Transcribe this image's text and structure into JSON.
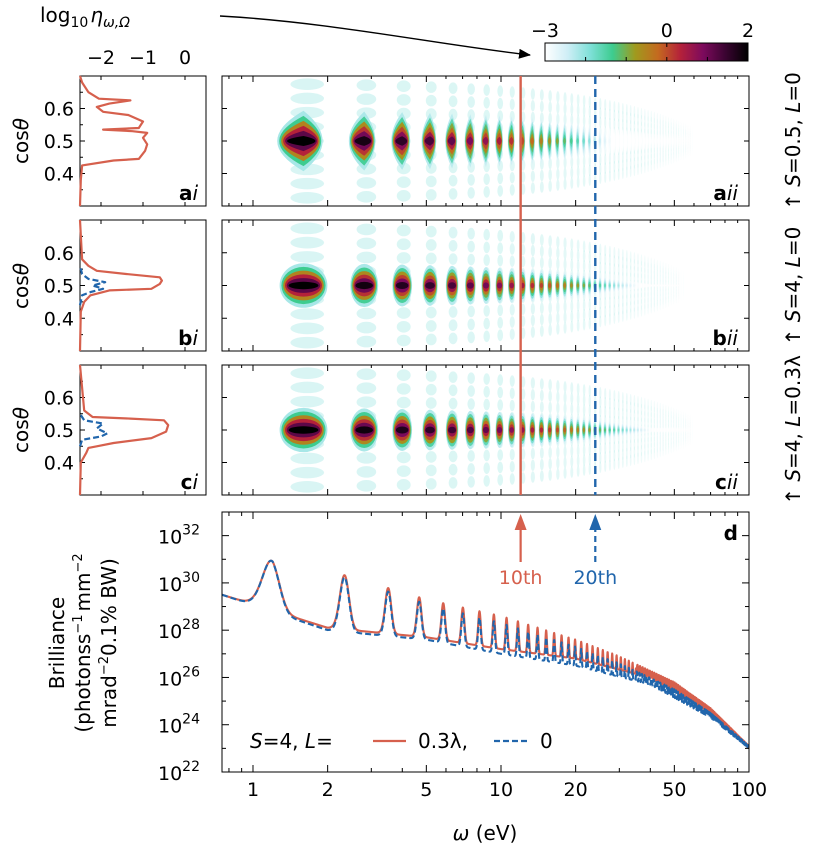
{
  "chart_data": [
    {
      "type": "heatmap",
      "panel": "colorbar",
      "title": "log10 η ω,Ω",
      "range": [
        -3,
        2
      ],
      "ticks": [
        "−3",
        "0",
        "2"
      ],
      "colors": [
        "#ffffff",
        "#cfeef6",
        "#7fe0d8",
        "#3dcc8f",
        "#a09a1e",
        "#c46a1f",
        "#b4213a",
        "#7d0a5d",
        "#3a0431",
        "#000000"
      ]
    },
    {
      "type": "line",
      "panel": "ai",
      "ylabel": "cosθ",
      "xticks": [
        "−2",
        "−1",
        "0"
      ],
      "yticks": [
        "0.4",
        "0.5",
        "0.6"
      ],
      "xlim": [
        -2.5,
        0.5
      ],
      "ylim": [
        0.3,
        0.7
      ],
      "panel_label": "a",
      "panel_label_italic": "i",
      "series": [
        {
          "color": "#d6604d",
          "dash": "solid",
          "x": [
            -2.5,
            -2.48,
            -2.45,
            -1.7,
            -1.1,
            -0.95,
            -0.9,
            -1.0,
            -0.9,
            -1.25,
            -1.95,
            -1.1,
            -1.0,
            -1.35,
            -1.95,
            -2.1,
            -1.8,
            -1.3,
            -2.05,
            -2.3,
            -2.45,
            -2.5
          ],
          "y": [
            0.3,
            0.38,
            0.425,
            0.44,
            0.445,
            0.47,
            0.49,
            0.51,
            0.525,
            0.53,
            0.535,
            0.54,
            0.56,
            0.58,
            0.59,
            0.605,
            0.615,
            0.625,
            0.63,
            0.65,
            0.68,
            0.7
          ]
        }
      ]
    },
    {
      "type": "line",
      "panel": "bi",
      "ylabel": "cosθ",
      "yticks": [
        "0.4",
        "0.5",
        "0.6"
      ],
      "xlim": [
        -2.5,
        0.5
      ],
      "ylim": [
        0.3,
        0.7
      ],
      "panel_label": "b",
      "panel_label_italic": "i",
      "series": [
        {
          "color": "#d6604d",
          "dash": "solid",
          "x": [
            -2.5,
            -2.48,
            -2.4,
            -2.25,
            -1.8,
            -0.8,
            -0.6,
            -0.55,
            -0.6,
            -1.4,
            -2.1,
            -2.3,
            -2.45,
            -2.5
          ],
          "y": [
            0.3,
            0.42,
            0.45,
            0.47,
            0.485,
            0.49,
            0.505,
            0.515,
            0.525,
            0.535,
            0.545,
            0.56,
            0.58,
            0.7
          ]
        },
        {
          "color": "#2166ac",
          "dash": "dashed",
          "x": [
            -2.5,
            -2.45,
            -2.25,
            -1.95,
            -2.2,
            -1.9,
            -2.3,
            -2.45,
            -2.5
          ],
          "y": [
            0.44,
            0.47,
            0.48,
            0.49,
            0.5,
            0.51,
            0.52,
            0.535,
            0.56
          ]
        }
      ]
    },
    {
      "type": "line",
      "panel": "ci",
      "ylabel": "cosθ",
      "yticks": [
        "0.4",
        "0.5",
        "0.6"
      ],
      "xlim": [
        -2.5,
        0.5
      ],
      "ylim": [
        0.3,
        0.7
      ],
      "panel_label": "c",
      "panel_label_italic": "i",
      "series": [
        {
          "color": "#d6604d",
          "dash": "solid",
          "x": [
            -2.5,
            -2.48,
            -2.35,
            -2.3,
            -2.1,
            -1.7,
            -0.8,
            -0.45,
            -0.4,
            -0.5,
            -1.3,
            -2.2,
            -2.4,
            -2.5
          ],
          "y": [
            0.3,
            0.4,
            0.43,
            0.445,
            0.45,
            0.46,
            0.475,
            0.495,
            0.515,
            0.53,
            0.535,
            0.54,
            0.56,
            0.7
          ]
        },
        {
          "color": "#2166ac",
          "dash": "dashed",
          "x": [
            -2.5,
            -2.45,
            -2.0,
            -1.85,
            -2.1,
            -1.95,
            -2.4,
            -2.5
          ],
          "y": [
            0.45,
            0.47,
            0.48,
            0.49,
            0.505,
            0.52,
            0.53,
            0.55
          ]
        }
      ]
    },
    {
      "type": "heatmap",
      "panel": "aii",
      "xscale": "log",
      "xlim": [
        0.75,
        100
      ],
      "ylim": [
        0.3,
        0.7
      ],
      "panel_label": "a",
      "panel_label_italic": "ii",
      "side_label": "↑  S=0.5, L=0",
      "side_parts": [
        "↑",
        "S",
        "=0.5,",
        "L",
        "=0"
      ],
      "harmonic_spacing_eV": 1.17,
      "blob_center_y": 0.5,
      "blob_halfwidth_y": 0.095,
      "width_shrink_per_harmonic": 0.022,
      "fade_out_eV": 60,
      "peak_level": 2.0,
      "level_decay_per_harmonic": 0.22,
      "crescent_shape": true
    },
    {
      "type": "heatmap",
      "panel": "bii",
      "xscale": "log",
      "xlim": [
        0.75,
        100
      ],
      "ylim": [
        0.3,
        0.7
      ],
      "panel_label": "b",
      "panel_label_italic": "ii",
      "side_label": "↑  S=4, L=0",
      "side_parts": [
        "↑",
        "S",
        "=4,",
        "L",
        "=0"
      ],
      "harmonic_spacing_eV": 1.17,
      "blob_center_y": 0.5,
      "blob_halfwidth_y": 0.07,
      "width_shrink_per_harmonic": 0.028,
      "fade_out_eV": 55,
      "peak_level": 2.0,
      "level_decay_per_harmonic": 0.17,
      "crescent_shape": false
    },
    {
      "type": "heatmap",
      "panel": "cii",
      "xscale": "log",
      "xlim": [
        0.75,
        100
      ],
      "ylim": [
        0.3,
        0.7
      ],
      "panel_label": "c",
      "panel_label_italic": "ii",
      "side_label": "↑  S=4, L=0.3λ",
      "side_parts": [
        "↑",
        "S",
        "=4,",
        "L",
        "=0.3λ"
      ],
      "harmonic_spacing_eV": 1.17,
      "blob_center_y": 0.5,
      "blob_halfwidth_y": 0.07,
      "width_shrink_per_harmonic": 0.026,
      "fade_out_eV": 60,
      "peak_level": 2.0,
      "level_decay_per_harmonic": 0.15,
      "crescent_shape": false
    },
    {
      "type": "line",
      "panel": "d",
      "xscale": "log",
      "yscale": "log",
      "xlim": [
        0.75,
        100
      ],
      "ylim": [
        1e+22,
        1e+33
      ],
      "xlabel": "ω (eV)",
      "ylabel_lines": [
        "Brilliance",
        "(photons s−1 mm−2",
        "mrad−2 0.1% BW)"
      ],
      "ylabel_parts": [
        "Brilliance",
        "(photons",
        "s",
        "−1",
        "mm",
        "−2",
        "mrad",
        "−2",
        "0.1% BW)"
      ],
      "xticks": [
        1,
        2,
        5,
        10,
        20,
        50,
        100
      ],
      "xtick_labels": [
        "1",
        "2",
        "5",
        "10",
        "20",
        "50",
        "100"
      ],
      "yticks": [
        22,
        24,
        26,
        28,
        30,
        32
      ],
      "ytick_labels": [
        "10",
        "10",
        "10",
        "10",
        "10",
        "10"
      ],
      "ytick_exponents": [
        "22",
        "24",
        "26",
        "28",
        "30",
        "32"
      ],
      "panel_label": "d",
      "legend_placement": "bottom-left",
      "legend_prefix_parts": [
        "S",
        "=4,",
        "L",
        "="
      ],
      "harmonic_spacing_eV": 1.17,
      "series": [
        {
          "name": "0.3λ",
          "color": "#d6604d",
          "dash": "solid",
          "envelope_log10": [
            [
              0.75,
              29.6
            ],
            [
              1.2,
              31.0
            ],
            [
              2.4,
              30.3
            ],
            [
              5,
              29.3
            ],
            [
              10,
              28.6
            ],
            [
              20,
              27.6
            ],
            [
              30,
              26.9
            ],
            [
              50,
              25.8
            ],
            [
              70,
              24.7
            ],
            [
              100,
              23.1
            ]
          ],
          "trough_log10": [
            [
              0.75,
              29.5
            ],
            [
              2,
              28.1
            ],
            [
              5,
              27.7
            ],
            [
              10,
              27.2
            ],
            [
              20,
              26.8
            ],
            [
              40,
              26.0
            ],
            [
              70,
              24.5
            ],
            [
              100,
              23.0
            ]
          ]
        },
        {
          "name": "0",
          "color": "#2166ac",
          "dash": "dashed",
          "envelope_log10": [
            [
              0.75,
              29.6
            ],
            [
              1.2,
              31.0
            ],
            [
              2.4,
              30.2
            ],
            [
              5,
              29.1
            ],
            [
              10,
              28.3
            ],
            [
              20,
              27.3
            ],
            [
              30,
              26.6
            ],
            [
              50,
              25.5
            ],
            [
              70,
              24.5
            ],
            [
              100,
              23.1
            ]
          ],
          "trough_log10": [
            [
              0.75,
              29.5
            ],
            [
              2,
              28.0
            ],
            [
              5,
              27.6
            ],
            [
              10,
              27.0
            ],
            [
              20,
              26.5
            ],
            [
              40,
              25.7
            ],
            [
              70,
              24.3
            ],
            [
              100,
              23.0
            ]
          ]
        }
      ]
    }
  ],
  "markers": [
    {
      "label": "10th",
      "x": 12.0,
      "color": "#d6604d",
      "dash": "solid"
    },
    {
      "label": "20th",
      "x": 24.0,
      "color": "#2166ac",
      "dash": "dashed"
    }
  ]
}
